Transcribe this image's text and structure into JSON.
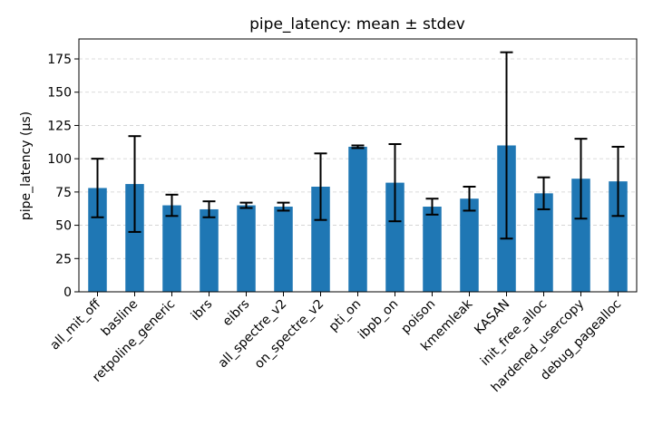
{
  "chart_data": {
    "type": "bar",
    "title": "pipe_latency: mean ± stdev",
    "xlabel": "",
    "ylabel": "pipe_latency (µs)",
    "ylim": [
      0,
      190
    ],
    "yticks": [
      0,
      25,
      50,
      75,
      100,
      125,
      150,
      175
    ],
    "grid": "y-dashed",
    "bar_color": "#1f77b4",
    "categories": [
      "all_mit_off",
      "basline",
      "retpoline_generic",
      "ibrs",
      "eibrs",
      "all_spectre_v2",
      "on_spectre_v2",
      "pti_on",
      "ibpb_on",
      "poison",
      "kmemleak",
      "KASAN",
      "init_free_alloc",
      "hardened_usercopy",
      "debug_pagealloc"
    ],
    "values": [
      78,
      81,
      65,
      62,
      65,
      64,
      79,
      109,
      82,
      64,
      70,
      110,
      74,
      85,
      83
    ],
    "errors": [
      22,
      36,
      8,
      6,
      2,
      3,
      25,
      1,
      29,
      6,
      9,
      70,
      12,
      30,
      26
    ]
  }
}
